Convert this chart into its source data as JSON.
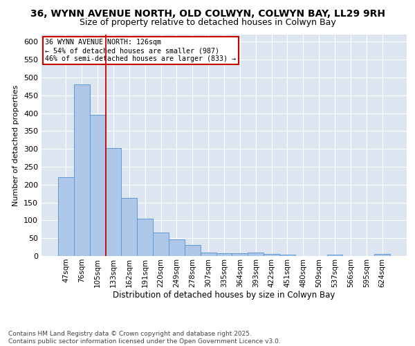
{
  "title": "36, WYNN AVENUE NORTH, OLD COLWYN, COLWYN BAY, LL29 9RH",
  "subtitle": "Size of property relative to detached houses in Colwyn Bay",
  "xlabel": "Distribution of detached houses by size in Colwyn Bay",
  "ylabel": "Number of detached properties",
  "categories": [
    "47sqm",
    "76sqm",
    "105sqm",
    "133sqm",
    "162sqm",
    "191sqm",
    "220sqm",
    "249sqm",
    "278sqm",
    "307sqm",
    "335sqm",
    "364sqm",
    "393sqm",
    "422sqm",
    "451sqm",
    "480sqm",
    "509sqm",
    "537sqm",
    "566sqm",
    "595sqm",
    "624sqm"
  ],
  "values": [
    220,
    480,
    395,
    302,
    163,
    104,
    65,
    47,
    31,
    10,
    8,
    8,
    10,
    5,
    3,
    0,
    0,
    3,
    0,
    0,
    5
  ],
  "bar_color": "#aec6e8",
  "bar_edge_color": "#5b9bd5",
  "vline_x": 2.5,
  "vline_color": "#cc0000",
  "annotation_title": "36 WYNN AVENUE NORTH: 126sqm",
  "annotation_line1": "← 54% of detached houses are smaller (987)",
  "annotation_line2": "46% of semi-detached houses are larger (833) →",
  "annotation_box_color": "#cc0000",
  "ylim": [
    0,
    620
  ],
  "yticks": [
    0,
    50,
    100,
    150,
    200,
    250,
    300,
    350,
    400,
    450,
    500,
    550,
    600
  ],
  "bg_color": "#dde5f0",
  "footer1": "Contains HM Land Registry data © Crown copyright and database right 2025.",
  "footer2": "Contains public sector information licensed under the Open Government Licence v3.0.",
  "title_fontsize": 10,
  "subtitle_fontsize": 9,
  "footer_fontsize": 6.5,
  "ylabel_fontsize": 8,
  "xlabel_fontsize": 8.5,
  "tick_fontsize": 7.5,
  "ytick_fontsize": 8
}
